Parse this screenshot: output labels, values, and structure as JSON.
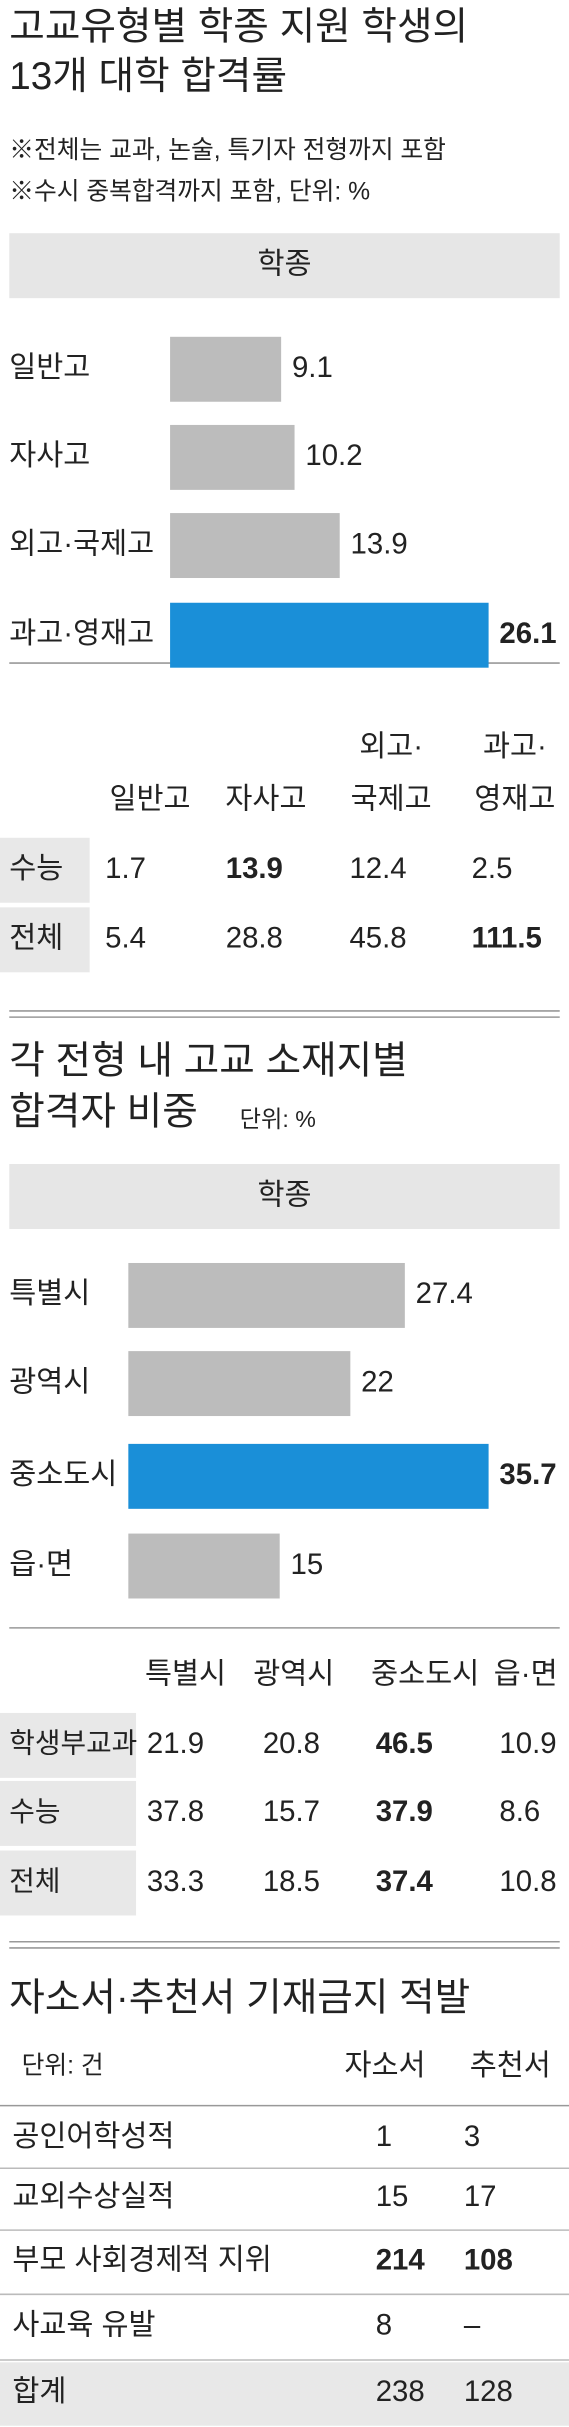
{
  "header": {
    "title": [
      "고교유형별 학종 지원 학생의",
      "13개 대학 합격률"
    ],
    "notes": [
      "※전체는 교과, 논술, 특기자 전형까지 포함",
      "※수시 중복합격까지 포함, 단위: %"
    ]
  },
  "chart_data": [
    {
      "type": "bar",
      "orientation": "horizontal",
      "title": "학종",
      "categories": [
        "일반고",
        "자사고",
        "외고·국제고",
        "과고·영재고"
      ],
      "values": [
        9.1,
        10.2,
        13.9,
        26.1
      ],
      "colors": [
        "#bcbcbc",
        "#bcbcbc",
        "#bcbcbc",
        "#1a8fd8"
      ],
      "label_colors": [
        "#222222",
        "#222222",
        "#222222",
        "#1a8fd8"
      ]
    },
    {
      "type": "bar",
      "orientation": "horizontal",
      "title": "학종",
      "categories": [
        "특별시",
        "광역시",
        "중소도시",
        "읍·면"
      ],
      "values": [
        27.4,
        22,
        35.7,
        15
      ],
      "colors": [
        "#bcbcbc",
        "#bcbcbc",
        "#1a8fd8",
        "#bcbcbc"
      ],
      "label_colors": [
        "#222222",
        "#222222",
        "#1a8fd8",
        "#222222"
      ]
    }
  ],
  "table1": {
    "columns": [
      [
        "일반고"
      ],
      [
        "자사고"
      ],
      [
        "외고·",
        "국제고"
      ],
      [
        "과고·",
        "영재고"
      ]
    ],
    "rows": [
      {
        "label": "수능",
        "values": [
          1.7,
          13.9,
          12.4,
          2.5
        ]
      },
      {
        "label": "전체",
        "values": [
          5.4,
          28.8,
          45.8,
          111.5
        ]
      }
    ],
    "highlight": [
      [
        0,
        1
      ],
      [
        1,
        3
      ]
    ],
    "highlight_color": "#1a8fd8"
  },
  "section2": {
    "title": [
      "각 전형 내 고교 소재지별",
      "합격자 비중"
    ],
    "unit": "단위: %"
  },
  "table2": {
    "columns": [
      "특별시",
      "광역시",
      "중소도시",
      "읍·면"
    ],
    "rows": [
      {
        "label": "학생부교과",
        "values": [
          21.9,
          20.8,
          46.5,
          10.9
        ]
      },
      {
        "label": "수능",
        "values": [
          37.8,
          15.7,
          37.9,
          8.6
        ]
      },
      {
        "label": "전체",
        "values": [
          33.3,
          18.5,
          37.4,
          10.8
        ]
      }
    ],
    "highlight": [
      [
        0,
        2
      ],
      [
        1,
        2
      ],
      [
        2,
        2
      ]
    ],
    "highlight_color": "#1a8fd8"
  },
  "section3": {
    "title": "자소서·추천서 기재금지 적발",
    "unit": "단위: 건"
  },
  "table3": {
    "columns": [
      "자소서",
      "추천서"
    ],
    "rows": [
      {
        "label": "공인어학성적",
        "values": [
          1,
          3
        ]
      },
      {
        "label": "교외수상실적",
        "values": [
          15,
          17
        ]
      },
      {
        "label": "부모 사회경제적 지위",
        "values": [
          214,
          108
        ]
      },
      {
        "label": "사교육 유발",
        "values": [
          8,
          "–"
        ]
      },
      {
        "label": "합계",
        "values": [
          238,
          128
        ]
      }
    ],
    "highlight": [
      [
        2,
        0
      ],
      [
        2,
        1
      ]
    ],
    "highlight_color": "#1a8fd8",
    "shaded_row": 4
  }
}
